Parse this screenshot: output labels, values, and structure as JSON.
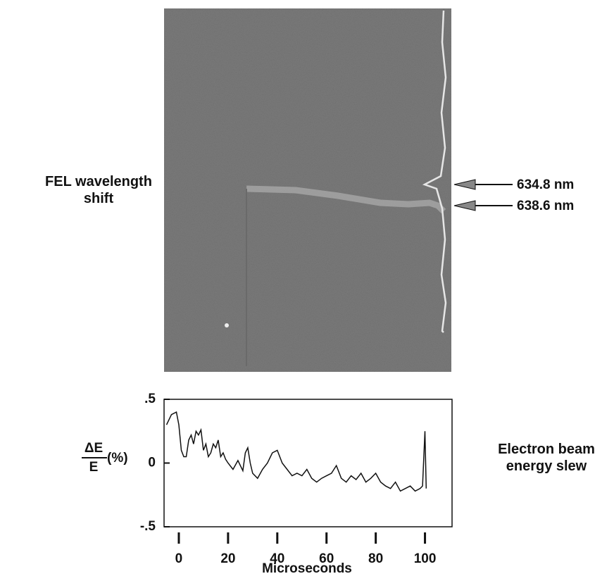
{
  "chart_data": {
    "type": "line",
    "image_label": "FEL wavelength shift",
    "annotations": [
      "634.8 nm",
      "638.6 nm"
    ],
    "ylabel_numerator": "ΔE",
    "ylabel_denominator": "E",
    "ylabel_unit": "(%)",
    "side_label": "Electron beam energy slew",
    "xlabel": "Microseconds",
    "x": [
      -5,
      -3,
      -1,
      0,
      1,
      2,
      3,
      4,
      5,
      6,
      7,
      8,
      9,
      10,
      11,
      12,
      13,
      14,
      15,
      16,
      17,
      18,
      19,
      20,
      22,
      24,
      26,
      27,
      28,
      29,
      30,
      32,
      34,
      36,
      38,
      40,
      42,
      44,
      46,
      48,
      50,
      52,
      54,
      56,
      58,
      60,
      62,
      64,
      66,
      68,
      70,
      72,
      74,
      76,
      78,
      80,
      82,
      84,
      86,
      88,
      90,
      92,
      94,
      96,
      98,
      99,
      100,
      100.5
    ],
    "values": [
      0.3,
      0.38,
      0.4,
      0.3,
      0.1,
      0.05,
      0.05,
      0.18,
      0.22,
      0.15,
      0.25,
      0.22,
      0.26,
      0.1,
      0.15,
      0.05,
      0.08,
      0.15,
      0.12,
      0.18,
      0.05,
      0.08,
      0.03,
      0.0,
      -0.05,
      0.02,
      -0.06,
      0.08,
      0.12,
      0.0,
      -0.08,
      -0.12,
      -0.05,
      0.0,
      0.08,
      0.1,
      0.0,
      -0.05,
      -0.1,
      -0.08,
      -0.1,
      -0.05,
      -0.12,
      -0.15,
      -0.12,
      -0.1,
      -0.08,
      -0.02,
      -0.12,
      -0.15,
      -0.1,
      -0.13,
      -0.08,
      -0.15,
      -0.12,
      -0.08,
      -0.15,
      -0.18,
      -0.2,
      -0.15,
      -0.22,
      -0.2,
      -0.18,
      -0.22,
      -0.2,
      -0.18,
      0.25,
      -0.2
    ],
    "color": "#111111",
    "xlim": [
      -6,
      111
    ],
    "ylim": [
      -0.5,
      0.5
    ],
    "xticks": [
      0,
      20,
      40,
      60,
      80,
      100
    ],
    "yticks": [
      {
        "value": 0.5,
        "label": ".5"
      },
      0,
      {
        "value": -0.5,
        "label": "-.5"
      }
    ]
  }
}
